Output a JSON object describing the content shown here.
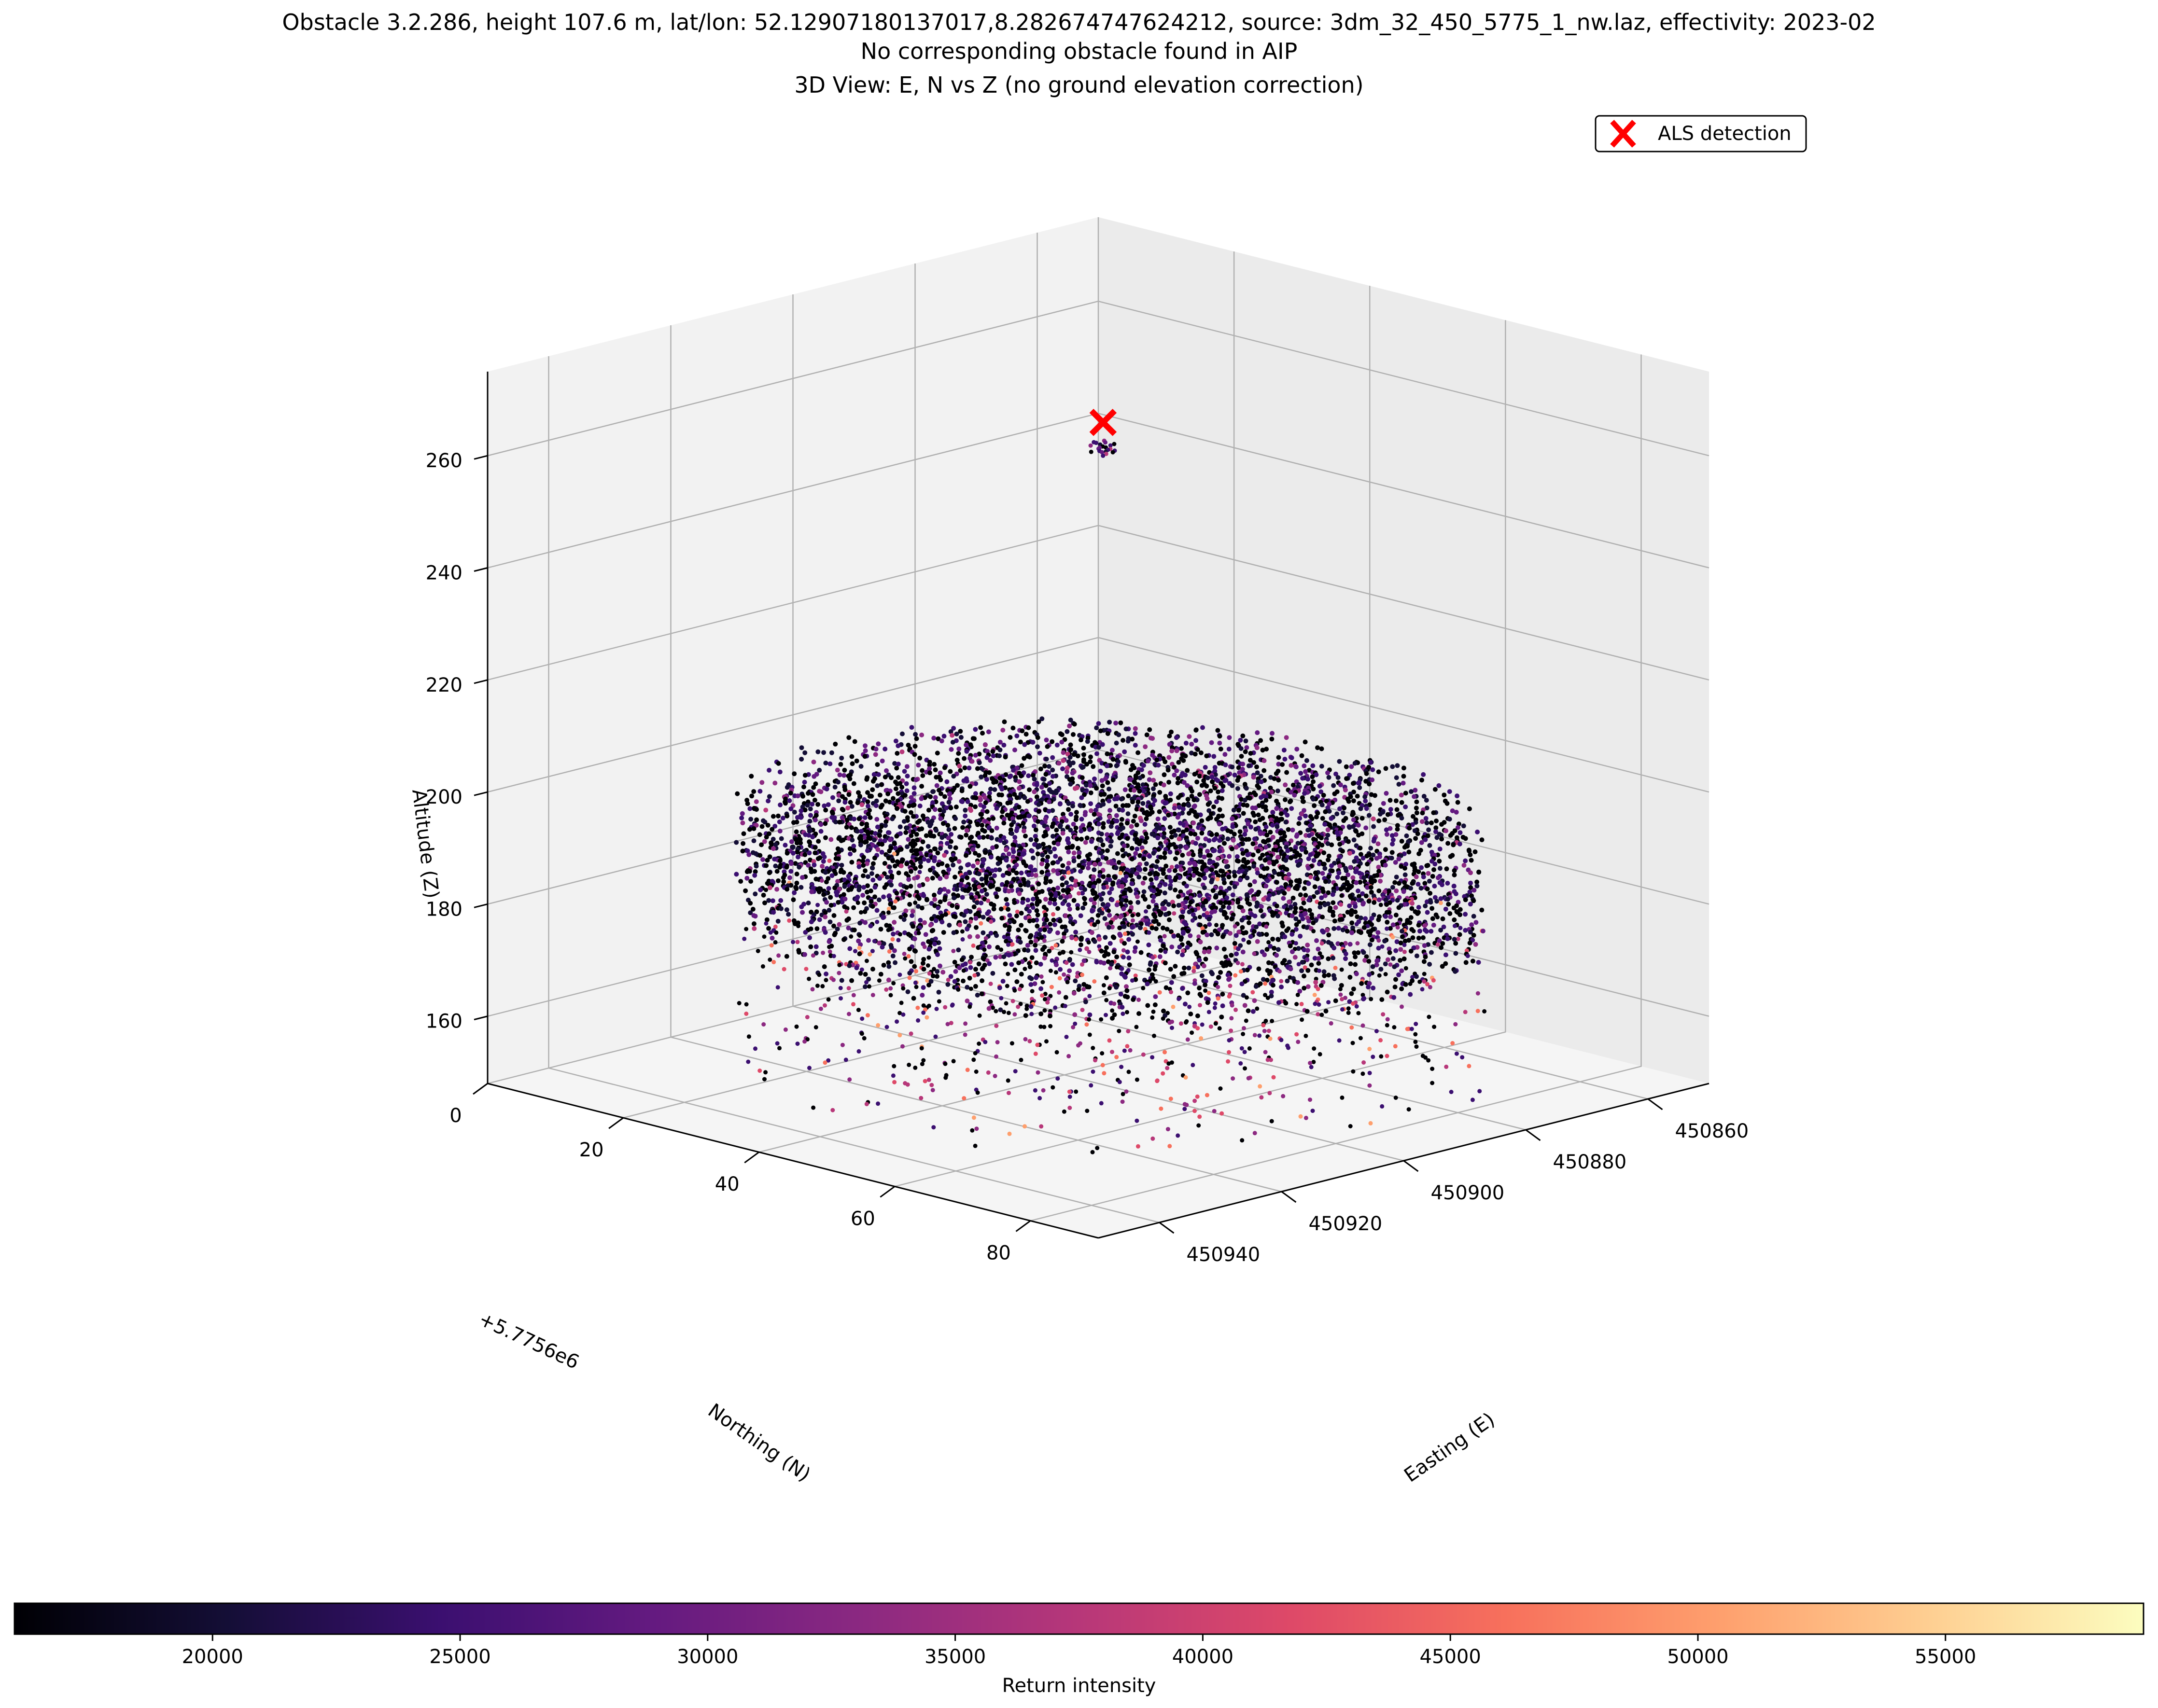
{
  "figure": {
    "title_lines": [
      "Obstacle 3.2.286, height 107.6 m, lat/lon: 52.12907180137017,8.282674747624212, source: 3dm_32_450_5775_1_nw.laz, effectivity: 2023-02",
      "No corresponding obstacle found in AIP"
    ],
    "subtitle": "3D View: E, N vs Z (no ground elevation correction)"
  },
  "chart_data": {
    "type": "scatter",
    "projection": "3d",
    "title": "Obstacle 3.2.286, height 107.6 m, lat/lon: 52.12907180137017,8.282674747624212, source: 3dm_32_450_5775_1_nw.laz, effectivity: 2023-02\nNo corresponding obstacle found in AIP",
    "subtitle": "3D View: E, N vs Z (no ground elevation correction)",
    "xlabel": "Easting (E)",
    "ylabel": "Northing (N)",
    "zlabel": "Altitude (Z)",
    "x_ticks": [
      "450860",
      "450880",
      "450900",
      "450920",
      "450940"
    ],
    "y_ticks": [
      "0",
      "20",
      "40",
      "60",
      "80"
    ],
    "y_offset_label": "+5.7756e6",
    "z_ticks": [
      "160",
      "180",
      "200",
      "220",
      "240",
      "260"
    ],
    "xlim": [
      450850,
      450950
    ],
    "ylim": [
      5775600,
      5775690
    ],
    "zlim": [
      148,
      275
    ],
    "grid": true,
    "legend": {
      "position": "top-right",
      "entries": [
        {
          "label": "ALS detection",
          "marker": "x",
          "color": "#ff0000"
        }
      ]
    },
    "detection": {
      "easting": 450897,
      "northing": 5775643,
      "altitude": 264.5
    },
    "point_cloud": {
      "description_for_render": "tree-crown shaped cloud of LiDAR returns",
      "center_easting": 450898,
      "center_northing": 5775645,
      "crown_top_altitude": 196,
      "crown_bottom_altitude": 178,
      "sparse_returns_min_altitude": 150,
      "radius_m": 40,
      "top_cluster_altitude": 260
    },
    "colorbar": {
      "label": "Return intensity",
      "colormap": "magma",
      "min": 16000,
      "max": 59000,
      "ticks": [
        "20000",
        "25000",
        "30000",
        "35000",
        "40000",
        "45000",
        "50000",
        "55000"
      ]
    }
  }
}
